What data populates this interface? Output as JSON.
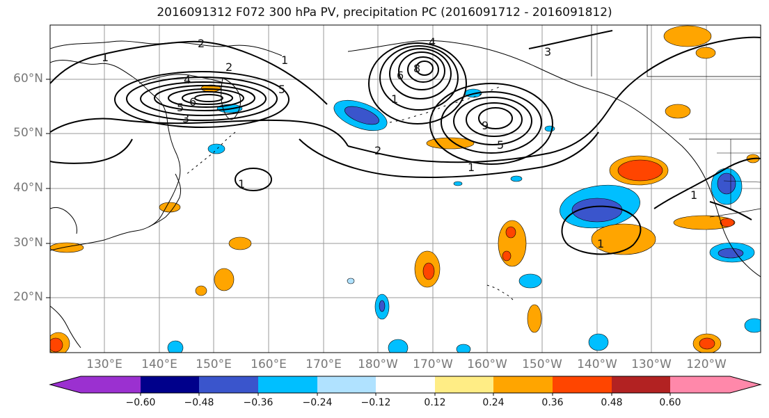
{
  "title": "2016091312 F072 300 hPa PV, precipitation PC (2016091712 - 2016091812)",
  "map": {
    "lat_labels": [
      "60°N",
      "50°N",
      "40°N",
      "30°N",
      "20°N"
    ],
    "lon_labels": [
      "130°E",
      "140°E",
      "150°E",
      "160°E",
      "170°E",
      "180°W",
      "170°W",
      "160°W",
      "150°W",
      "140°W",
      "130°W",
      "120°W"
    ],
    "contour_labels": [
      "1",
      "2",
      "1",
      "2",
      "4",
      "6",
      "5",
      "3",
      "5",
      "4",
      "6",
      "8",
      "1",
      "9",
      "5",
      "2",
      "1",
      "3",
      "1",
      "1",
      "1"
    ]
  },
  "colorbar": {
    "tick_labels": [
      "−0.60",
      "−0.48",
      "−0.36",
      "−0.24",
      "−0.12",
      "0.12",
      "0.24",
      "0.36",
      "0.48",
      "0.60"
    ],
    "colors": [
      "#9b30d0",
      "#00008b",
      "#3a55cc",
      "#00bfff",
      "#b0e2ff",
      "#ffffff",
      "#ffed85",
      "#ffa500",
      "#ff4500",
      "#b22222",
      "#ff88aa"
    ]
  }
}
